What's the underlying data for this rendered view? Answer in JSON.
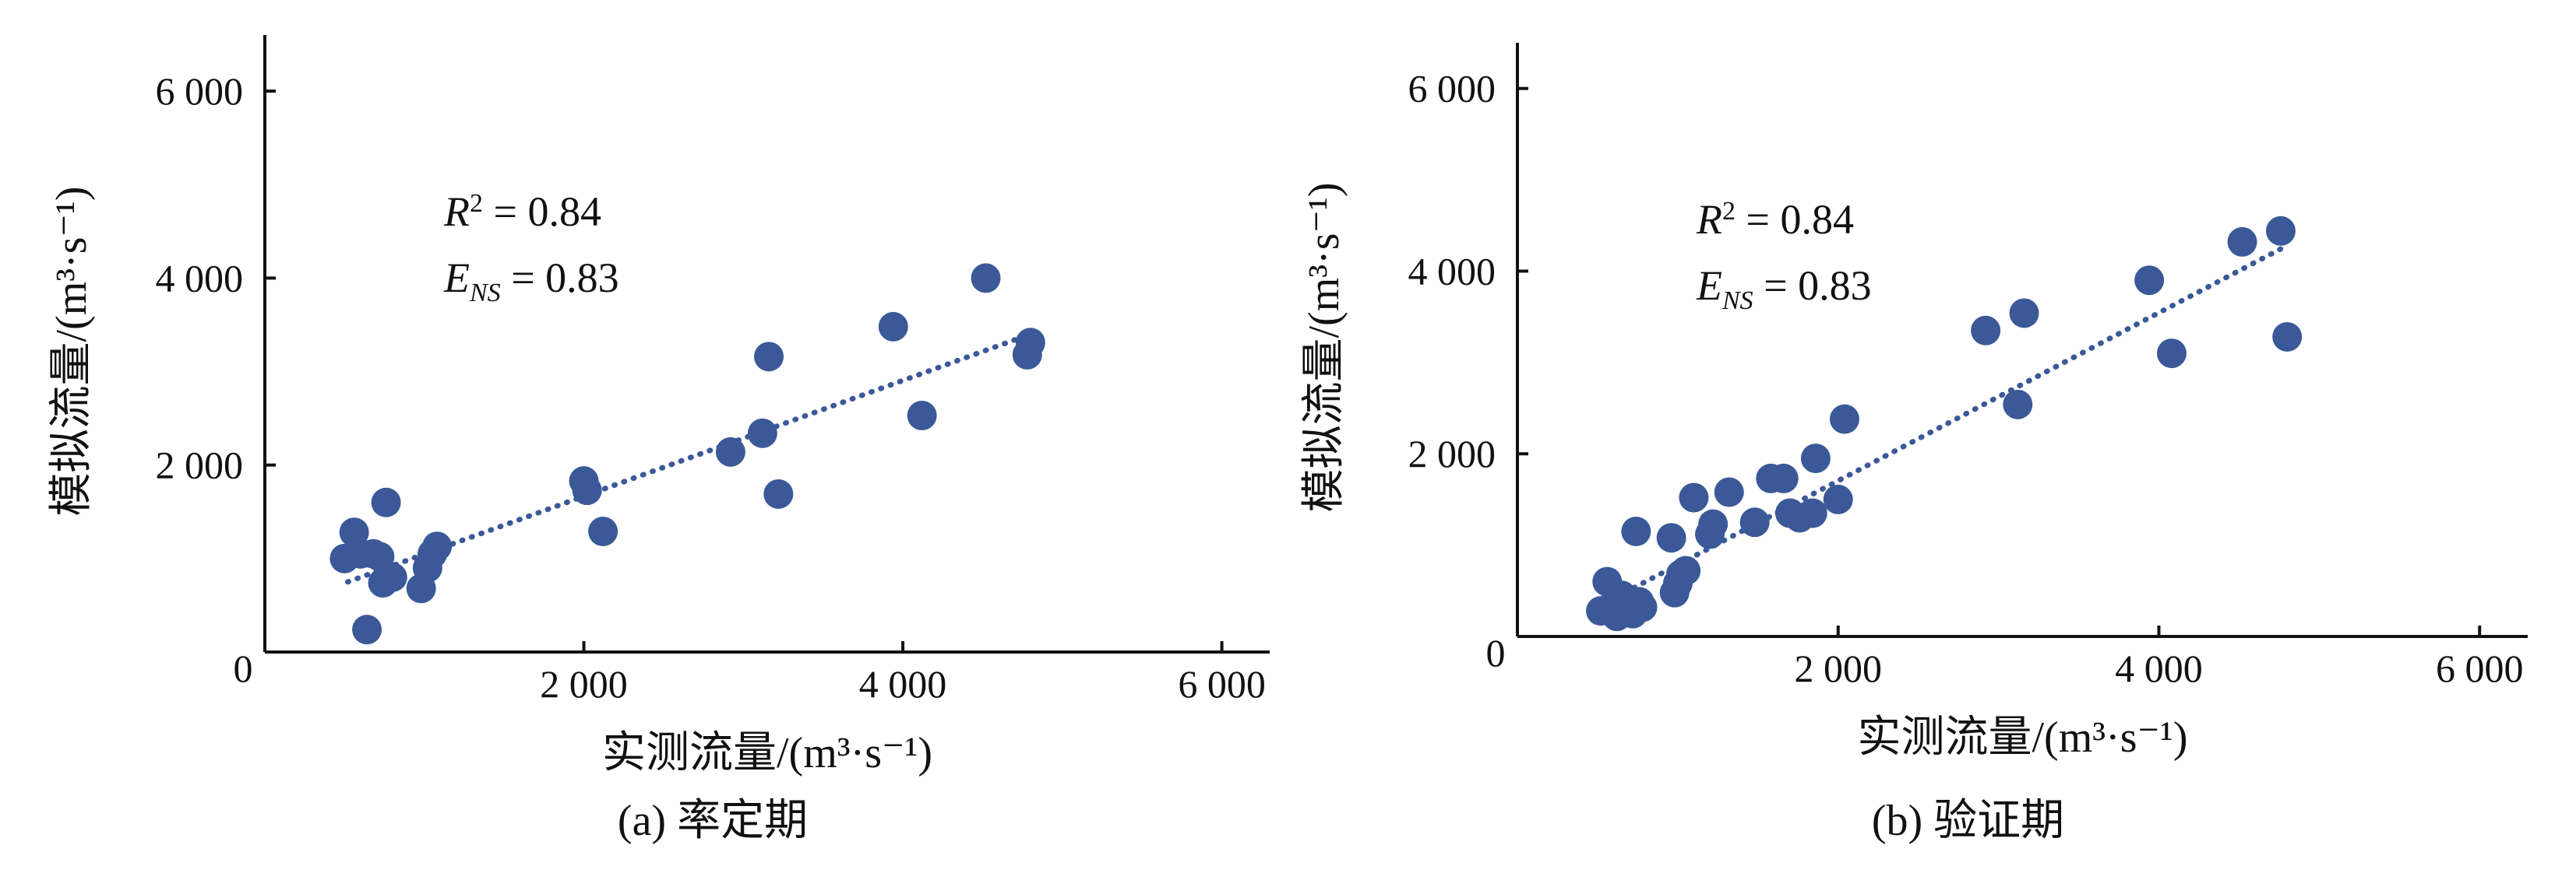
{
  "figure": {
    "panels": [
      {
        "caption": "(a) 率定期"
      },
      {
        "caption": "(b) 验证期"
      }
    ]
  },
  "chart_data": [
    {
      "type": "scatter",
      "xlabel": "实测流量/(m³·s⁻¹)",
      "ylabel": "模拟流量/(m³·s⁻¹)",
      "xlim": [
        0,
        6300
      ],
      "ylim": [
        0,
        6600
      ],
      "xticks": [
        "2 000",
        "4 000",
        "6 000"
      ],
      "yticks": [
        "2 000",
        "4 000",
        "6 000"
      ],
      "origin_label": "0",
      "annotation": {
        "r2": "R² = 0.84",
        "ens": "E_NS = 0.83"
      },
      "marker_color": "#3b5998",
      "trendline_color": "#3b5998",
      "trendline": {
        "x": [
          520,
          4800
        ],
        "y": [
          750,
          3400
        ]
      },
      "points": [
        {
          "x": 500,
          "y": 1000
        },
        {
          "x": 560,
          "y": 1280
        },
        {
          "x": 600,
          "y": 1050
        },
        {
          "x": 640,
          "y": 240
        },
        {
          "x": 680,
          "y": 1050
        },
        {
          "x": 720,
          "y": 1020
        },
        {
          "x": 740,
          "y": 740
        },
        {
          "x": 760,
          "y": 1600
        },
        {
          "x": 800,
          "y": 800
        },
        {
          "x": 980,
          "y": 680
        },
        {
          "x": 1020,
          "y": 900
        },
        {
          "x": 1050,
          "y": 1050
        },
        {
          "x": 1080,
          "y": 1130
        },
        {
          "x": 2000,
          "y": 1830
        },
        {
          "x": 2020,
          "y": 1730
        },
        {
          "x": 2120,
          "y": 1290
        },
        {
          "x": 2920,
          "y": 2140
        },
        {
          "x": 3120,
          "y": 2340
        },
        {
          "x": 3160,
          "y": 3160
        },
        {
          "x": 3220,
          "y": 1690
        },
        {
          "x": 3940,
          "y": 3480
        },
        {
          "x": 4120,
          "y": 2530
        },
        {
          "x": 4520,
          "y": 4000
        },
        {
          "x": 4780,
          "y": 3180
        },
        {
          "x": 4800,
          "y": 3310
        }
      ]
    },
    {
      "type": "scatter",
      "xlabel": "实测流量/(m³·s⁻¹)",
      "ylabel": "模拟流量/(m³·s⁻¹)",
      "xlim": [
        0,
        6300
      ],
      "ylim": [
        0,
        6500
      ],
      "xticks": [
        "2 000",
        "4 000",
        "6 000"
      ],
      "yticks": [
        "2 000",
        "4 000",
        "6 000"
      ],
      "origin_label": "0",
      "annotation": {
        "r2": "R² = 0.84",
        "ens": "E_NS = 0.83"
      },
      "marker_color": "#3b5998",
      "trendline_color": "#3b5998",
      "trendline": {
        "x": [
          560,
          4800
        ],
        "y": [
          380,
          4280
        ]
      },
      "points": [
        {
          "x": 520,
          "y": 280
        },
        {
          "x": 560,
          "y": 600
        },
        {
          "x": 600,
          "y": 350
        },
        {
          "x": 620,
          "y": 220
        },
        {
          "x": 650,
          "y": 450
        },
        {
          "x": 680,
          "y": 300
        },
        {
          "x": 700,
          "y": 400
        },
        {
          "x": 720,
          "y": 250
        },
        {
          "x": 740,
          "y": 1150
        },
        {
          "x": 760,
          "y": 380
        },
        {
          "x": 780,
          "y": 320
        },
        {
          "x": 960,
          "y": 1080
        },
        {
          "x": 980,
          "y": 480
        },
        {
          "x": 1000,
          "y": 580
        },
        {
          "x": 1020,
          "y": 680
        },
        {
          "x": 1050,
          "y": 720
        },
        {
          "x": 1100,
          "y": 1520
        },
        {
          "x": 1200,
          "y": 1120
        },
        {
          "x": 1220,
          "y": 1230
        },
        {
          "x": 1320,
          "y": 1580
        },
        {
          "x": 1480,
          "y": 1250
        },
        {
          "x": 1580,
          "y": 1730
        },
        {
          "x": 1660,
          "y": 1730
        },
        {
          "x": 1700,
          "y": 1350
        },
        {
          "x": 1760,
          "y": 1300
        },
        {
          "x": 1840,
          "y": 1350
        },
        {
          "x": 1860,
          "y": 1950
        },
        {
          "x": 2000,
          "y": 1500
        },
        {
          "x": 2040,
          "y": 2380
        },
        {
          "x": 2920,
          "y": 3350
        },
        {
          "x": 3120,
          "y": 2540
        },
        {
          "x": 3160,
          "y": 3540
        },
        {
          "x": 3940,
          "y": 3900
        },
        {
          "x": 4080,
          "y": 3100
        },
        {
          "x": 4520,
          "y": 4320
        },
        {
          "x": 4760,
          "y": 4440
        },
        {
          "x": 4800,
          "y": 3280
        }
      ]
    }
  ]
}
